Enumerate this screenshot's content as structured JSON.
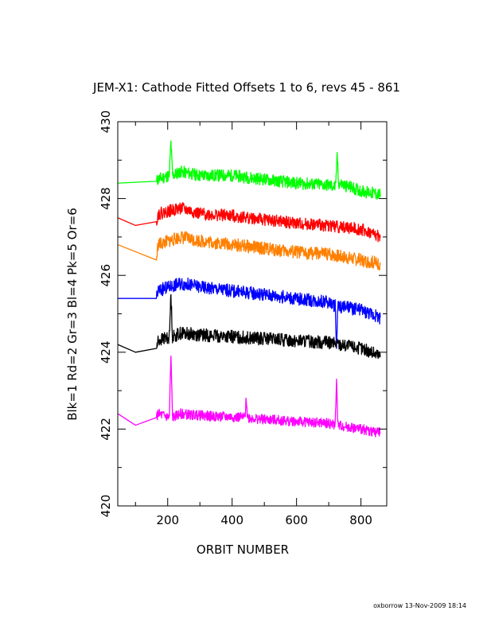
{
  "footer": "oxborrow 13-Nov-2009 18:14",
  "chart_data": {
    "type": "line",
    "title": "JEM-X1: Cathode Fitted Offsets 1 to 6, revs 45 - 861",
    "xlabel": "ORBIT NUMBER",
    "ylabel": "Blk=1 Rd=2 Gr=3 Bl=4 Pk=5 Or=6",
    "xlim": [
      45,
      880
    ],
    "ylim": [
      420,
      430
    ],
    "xticks": [
      200,
      400,
      600,
      800
    ],
    "yticks": [
      420,
      422,
      424,
      426,
      428,
      430
    ],
    "grid": false,
    "series": [
      {
        "color": "#00ff00",
        "key_points": [
          [
            45,
            428.4
          ],
          [
            165,
            428.45
          ],
          [
            170,
            428.5
          ],
          [
            205,
            428.6
          ],
          [
            210,
            429.5
          ],
          [
            215,
            428.6
          ],
          [
            240,
            428.7
          ],
          [
            300,
            428.6
          ],
          [
            400,
            428.6
          ],
          [
            500,
            428.5
          ],
          [
            600,
            428.4
          ],
          [
            700,
            428.35
          ],
          [
            722,
            428.3
          ],
          [
            726,
            429.2
          ],
          [
            730,
            428.4
          ],
          [
            800,
            428.2
          ],
          [
            860,
            428.1
          ]
        ],
        "noise": 0.16,
        "seed": 11
      },
      {
        "color": "#ff0000",
        "key_points": [
          [
            45,
            427.5
          ],
          [
            100,
            427.3
          ],
          [
            165,
            427.4
          ],
          [
            170,
            427.6
          ],
          [
            240,
            427.75
          ],
          [
            300,
            427.6
          ],
          [
            400,
            427.55
          ],
          [
            500,
            427.45
          ],
          [
            600,
            427.35
          ],
          [
            700,
            427.3
          ],
          [
            800,
            427.2
          ],
          [
            860,
            427.0
          ]
        ],
        "noise": 0.16,
        "seed": 22
      },
      {
        "color": "#ff8000",
        "key_points": [
          [
            45,
            426.8
          ],
          [
            165,
            426.4
          ],
          [
            170,
            426.8
          ],
          [
            240,
            427.0
          ],
          [
            300,
            426.9
          ],
          [
            400,
            426.8
          ],
          [
            500,
            426.7
          ],
          [
            600,
            426.6
          ],
          [
            700,
            426.55
          ],
          [
            800,
            426.4
          ],
          [
            860,
            426.3
          ]
        ],
        "noise": 0.17,
        "seed": 33
      },
      {
        "color": "#0000ff",
        "key_points": [
          [
            45,
            425.4
          ],
          [
            165,
            425.4
          ],
          [
            170,
            425.6
          ],
          [
            240,
            425.8
          ],
          [
            300,
            425.7
          ],
          [
            400,
            425.6
          ],
          [
            500,
            425.5
          ],
          [
            600,
            425.4
          ],
          [
            700,
            425.3
          ],
          [
            720,
            425.2
          ],
          [
            724,
            424.1
          ],
          [
            728,
            425.2
          ],
          [
            800,
            425.1
          ],
          [
            860,
            424.9
          ]
        ],
        "noise": 0.17,
        "seed": 44
      },
      {
        "color": "#000000",
        "key_points": [
          [
            45,
            424.2
          ],
          [
            100,
            424.0
          ],
          [
            165,
            424.1
          ],
          [
            170,
            424.3
          ],
          [
            205,
            424.4
          ],
          [
            210,
            425.5
          ],
          [
            215,
            424.4
          ],
          [
            240,
            424.5
          ],
          [
            300,
            424.45
          ],
          [
            400,
            424.4
          ],
          [
            500,
            424.35
          ],
          [
            600,
            424.3
          ],
          [
            700,
            424.25
          ],
          [
            800,
            424.1
          ],
          [
            860,
            423.9
          ]
        ],
        "noise": 0.17,
        "seed": 55
      },
      {
        "color": "#ff00ff",
        "key_points": [
          [
            45,
            422.4
          ],
          [
            100,
            422.1
          ],
          [
            165,
            422.3
          ],
          [
            170,
            422.4
          ],
          [
            205,
            422.3
          ],
          [
            210,
            423.9
          ],
          [
            215,
            422.3
          ],
          [
            240,
            422.4
          ],
          [
            300,
            422.35
          ],
          [
            440,
            422.3
          ],
          [
            444,
            422.8
          ],
          [
            448,
            422.3
          ],
          [
            500,
            422.25
          ],
          [
            600,
            422.2
          ],
          [
            700,
            422.15
          ],
          [
            720,
            422.1
          ],
          [
            724,
            423.3
          ],
          [
            728,
            422.1
          ],
          [
            800,
            422.0
          ],
          [
            860,
            421.9
          ]
        ],
        "noise": 0.13,
        "seed": 66
      }
    ]
  }
}
